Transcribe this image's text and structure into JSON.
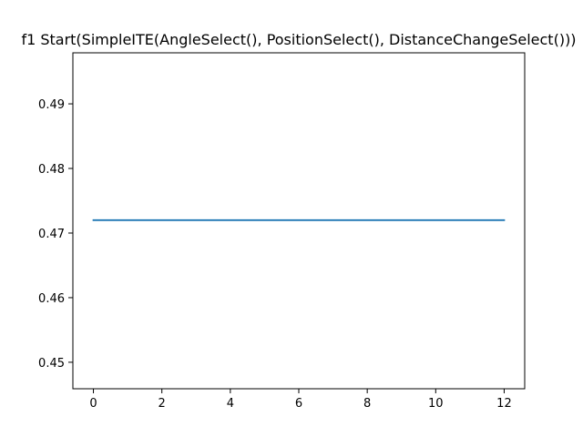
{
  "chart_data": {
    "type": "line",
    "title": "f1 Start(SimpleITE(AngleSelect(), PositionSelect(), DistanceChangeSelect()))",
    "xlabel": "",
    "ylabel": "",
    "xlim": [
      -0.6,
      12.6
    ],
    "ylim": [
      0.4459,
      0.4979
    ],
    "xticks": [
      0,
      2,
      4,
      6,
      8,
      10,
      12
    ],
    "yticks": [
      0.45,
      0.46,
      0.47,
      0.48,
      0.49
    ],
    "grid": false,
    "series": [
      {
        "color": "#1f77b4",
        "x": [
          0,
          1,
          2,
          3,
          4,
          5,
          6,
          7,
          8,
          9,
          10,
          11,
          12
        ],
        "y": [
          0.472,
          0.472,
          0.472,
          0.472,
          0.472,
          0.472,
          0.472,
          0.472,
          0.472,
          0.472,
          0.472,
          0.472,
          0.472
        ]
      }
    ]
  }
}
